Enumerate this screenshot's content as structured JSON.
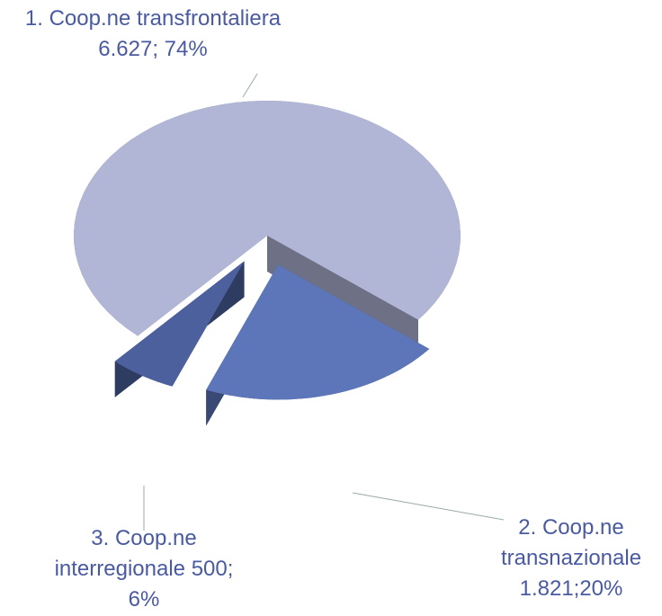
{
  "chart_data": {
    "type": "pie",
    "categories": [
      "1. Coop.ne transfrontaliera",
      "2. Coop.ne transnazionale",
      "3. Coop.ne interregionale"
    ],
    "values": [
      6627,
      1821,
      500
    ],
    "value_labels": [
      "6.627; 74%",
      "1.821;20%",
      "500; 6%"
    ],
    "colors": [
      "#b1b6d6",
      "#5d76b9",
      "#4b609c"
    ]
  }
}
